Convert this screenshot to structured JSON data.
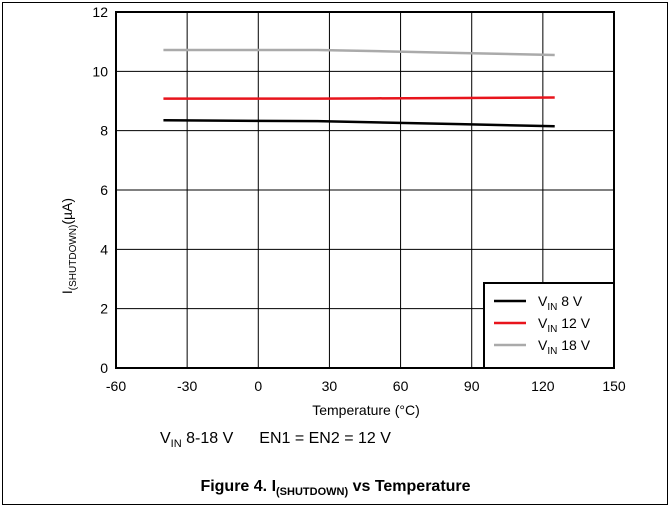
{
  "chart_data": {
    "type": "line",
    "title": "",
    "xlabel": "Temperature (°C)",
    "ylabel_main": "I",
    "ylabel_sub": "(SHUTDOWN)",
    "ylabel_unit": "(µA)",
    "xlim": [
      -60,
      150
    ],
    "ylim": [
      0,
      12
    ],
    "xticks": [
      -60,
      -30,
      0,
      30,
      60,
      90,
      120,
      150
    ],
    "yticks": [
      0,
      2,
      4,
      6,
      8,
      10,
      12
    ],
    "grid": true,
    "legend_position": "bottom-right",
    "series": [
      {
        "label_main": "V",
        "label_sub": "IN",
        "label_rest": " 8 V",
        "color": "#000000",
        "x": [
          -40,
          0,
          25,
          50,
          85,
          125
        ],
        "y": [
          8.35,
          8.33,
          8.32,
          8.28,
          8.22,
          8.15
        ]
      },
      {
        "label_main": "V",
        "label_sub": "IN",
        "label_rest": " 12 V",
        "color": "#e8141c",
        "x": [
          -40,
          0,
          25,
          50,
          85,
          125
        ],
        "y": [
          9.08,
          9.08,
          9.08,
          9.09,
          9.1,
          9.12
        ]
      },
      {
        "label_main": "V",
        "label_sub": "IN",
        "label_rest": " 18 V",
        "color": "#aaaaaa",
        "x": [
          -40,
          0,
          25,
          50,
          85,
          125
        ],
        "y": [
          10.72,
          10.72,
          10.72,
          10.68,
          10.62,
          10.55
        ]
      }
    ]
  },
  "condition": {
    "vin_main": "V",
    "vin_sub": "IN",
    "vin_rest": " 8-18 V",
    "en": "EN1 = EN2 = 12 V"
  },
  "caption": {
    "prefix": "Figure 4. I",
    "sub": "(SHUTDOWN)",
    "suffix": " vs Temperature"
  }
}
